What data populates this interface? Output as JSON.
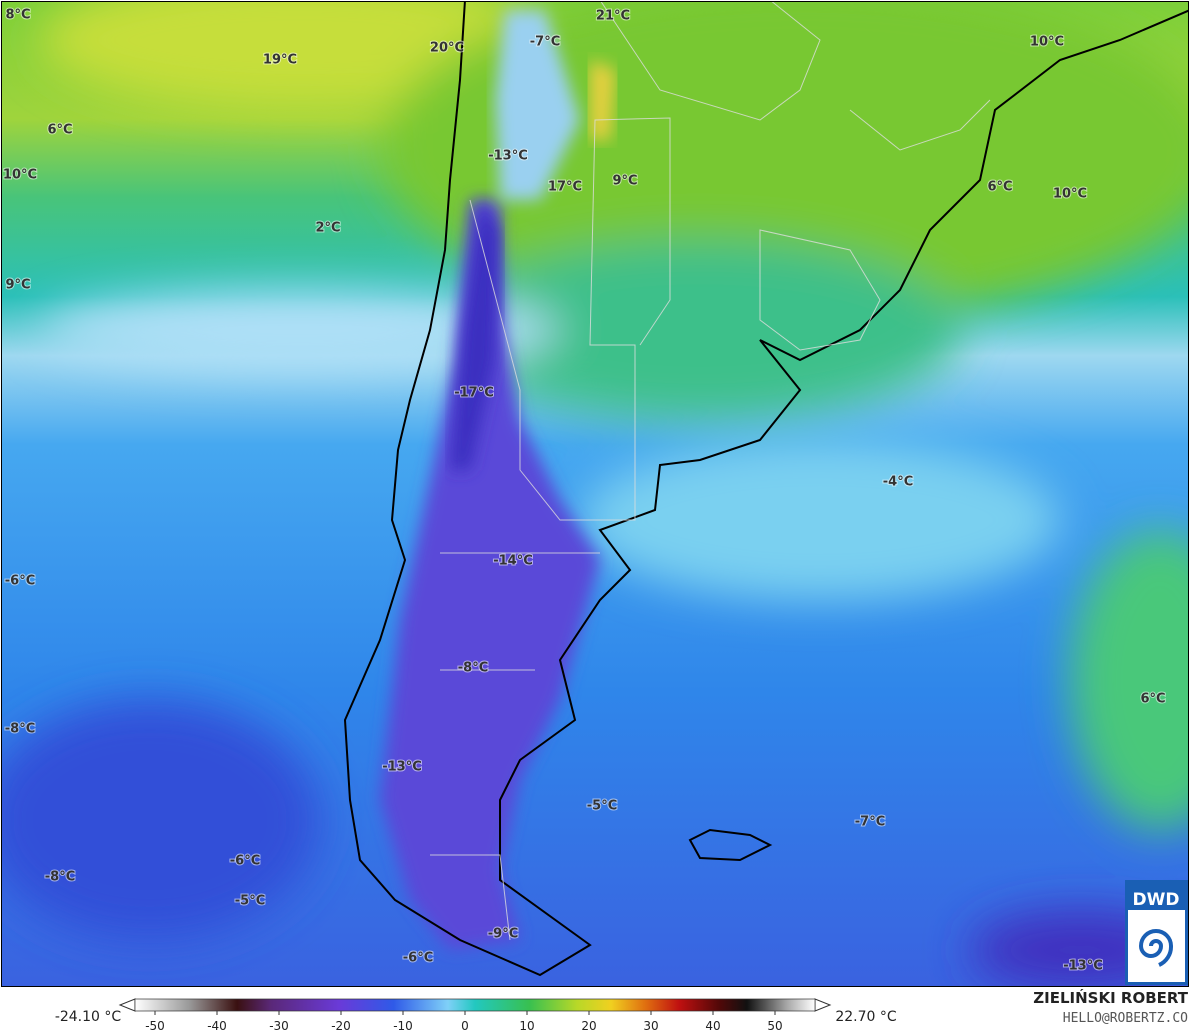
{
  "map": {
    "temperature_labels": [
      "8°C",
      "19°C",
      "20°C",
      "-7°C",
      "21°C",
      "10°C",
      "6°C",
      "-13°C",
      "10°C",
      "17°C",
      "9°C",
      "6°C",
      "10°C",
      "2°C",
      "9°C",
      "-17°C",
      "-4°C",
      "-14°C",
      "-6°C",
      "-8°C",
      "6°C",
      "-8°C",
      "-13°C",
      "-5°C",
      "-7°C",
      "-6°C",
      "-8°C",
      "-5°C",
      "-9°C",
      "-6°C",
      "-13°C"
    ],
    "logo": "DWD"
  },
  "colorbar": {
    "min_label": "-24.10 °C",
    "max_label": "22.70 °C",
    "ticks": [
      -50,
      -40,
      -30,
      -20,
      -10,
      0,
      10,
      20,
      30,
      40,
      50
    ]
  },
  "credit": {
    "name": "ZIELIŃSKI ROBERT",
    "contact": "HELLO@ROBERTZ.CO"
  }
}
